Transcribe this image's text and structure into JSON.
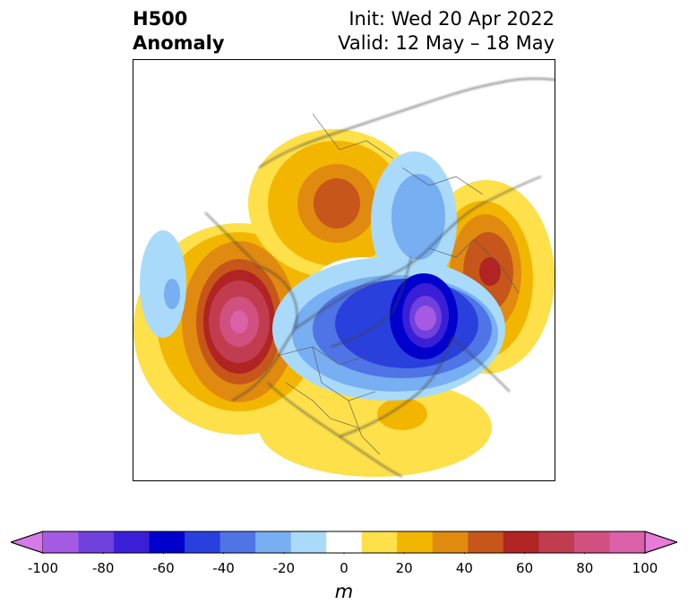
{
  "header": {
    "title_line1": "H500",
    "title_line2": "Anomaly",
    "init_text": "Init: Wed 20 Apr 2022",
    "valid_text": "Valid: 12 May – 18 May"
  },
  "colorbar": {
    "unit": "m",
    "ticks": [
      "-100",
      "-80",
      "-60",
      "-40",
      "-20",
      "0",
      "20",
      "40",
      "60",
      "80",
      "100"
    ],
    "bins": [
      {
        "range": "-100 to -90",
        "color": "#d67ae8"
      },
      {
        "range": "-90 to -80",
        "color": "#a55ae3"
      },
      {
        "range": "-80 to -70",
        "color": "#7040dc"
      },
      {
        "range": "-70 to -60",
        "color": "#3b1fd6"
      },
      {
        "range": "-60 to -50",
        "color": "#0000cc"
      },
      {
        "range": "-50 to -40",
        "color": "#2a40dc"
      },
      {
        "range": "-40 to -30",
        "color": "#4f74e6"
      },
      {
        "range": "-30 to -20",
        "color": "#78aef2"
      },
      {
        "range": "-20 to -10",
        "color": "#a9dafa"
      },
      {
        "range": "-10 to 10",
        "color": "#ffffff"
      },
      {
        "range": "10 to 20",
        "color": "#fde04a"
      },
      {
        "range": "20 to 30",
        "color": "#f3b600"
      },
      {
        "range": "30 to 40",
        "color": "#e08a10"
      },
      {
        "range": "40 to 50",
        "color": "#c6561a"
      },
      {
        "range": "50 to 60",
        "color": "#b02424"
      },
      {
        "range": "60 to 70",
        "color": "#c23c50"
      },
      {
        "range": "70 to 80",
        "color": "#d05080"
      },
      {
        "range": "80 to 90",
        "color": "#da60a8"
      },
      {
        "range": "90 to 100",
        "color": "#e87ad8"
      }
    ],
    "extend": "both"
  },
  "map": {
    "projection": "polar stereographic, North Pole",
    "field": "500 hPa geopotential height anomaly",
    "features": [
      {
        "name": "positive anomaly",
        "region": "Gulf of Alaska / NE Pacific",
        "peak_m": 75
      },
      {
        "name": "negative anomaly",
        "region": "far North Pacific",
        "peak_m": -30
      },
      {
        "name": "positive anomaly",
        "region": "Central Siberia",
        "peak_m": 45
      },
      {
        "name": "negative anomaly",
        "region": "Kara Sea / Arctic",
        "peak_m": -25
      },
      {
        "name": "positive anomaly",
        "region": "Scandinavia / NW Russia",
        "peak_m": 55
      },
      {
        "name": "negative anomaly",
        "region": "Greenland",
        "peak_m": -90
      },
      {
        "name": "negative anomaly",
        "region": "Hudson Bay / central Canada",
        "peak_m": -45
      },
      {
        "name": "positive anomaly",
        "region": "Eastern United States",
        "peak_m": 25
      }
    ]
  }
}
